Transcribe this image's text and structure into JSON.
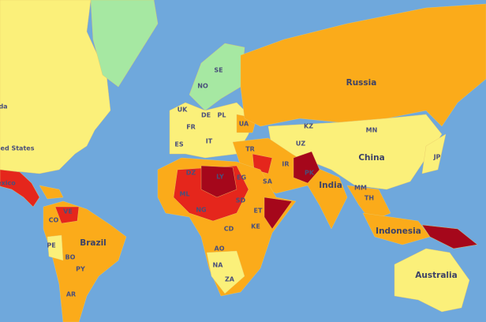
{
  "labels": [
    "da",
    "ed States",
    "exico",
    "Russia",
    "China",
    "India",
    "Indonesia",
    "Australia",
    "Brazil",
    "NO",
    "SE",
    "UK",
    "DE",
    "PL",
    "FR",
    "ES",
    "IT",
    "UA",
    "KZ",
    "MN",
    "UZ",
    "TR",
    "IR",
    "DZ",
    "LY",
    "EG",
    "ML",
    "SA",
    "PK",
    "NG",
    "SD",
    "ET",
    "MM",
    "TH",
    "JP",
    "VE",
    "CO",
    "KE",
    "CD",
    "PE",
    "BO",
    "AO",
    "PY",
    "NA",
    "ZA",
    "AR"
  ]
}
